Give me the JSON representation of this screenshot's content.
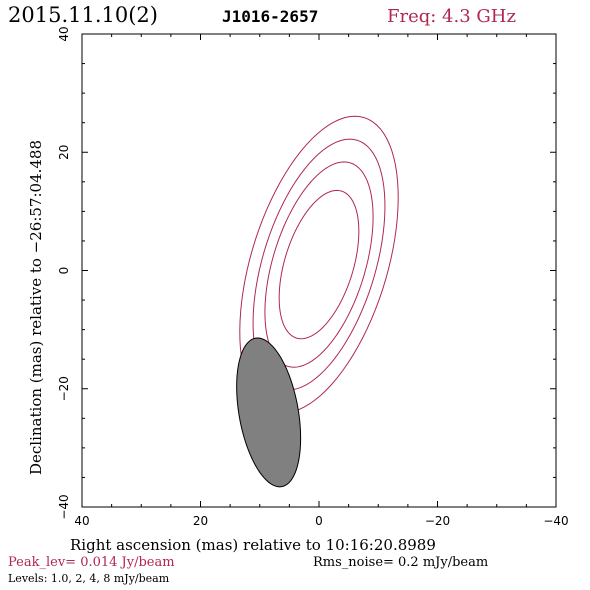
{
  "header": {
    "date": "2015.11.10(2)",
    "source": "J1016-2657",
    "freq": "Freq: 4.3 GHz"
  },
  "footer": {
    "peak": "Peak_lev=  0.014 Jy/beam",
    "rms": "Rms_noise=   0.2 mJy/beam",
    "levels": "Levels: 1.0,    2,    4,    8 mJy/beam"
  },
  "colors": {
    "contour": "#b0284f",
    "beam_fill": "#808080",
    "axes": "#000000"
  },
  "chart_data": {
    "type": "contour",
    "xlabel": "Right ascension (mas) relative to 10:16:20.8989",
    "ylabel": "Declination (mas) relative to −26:57:04.488",
    "xlim": [
      40,
      -40
    ],
    "ylim": [
      -40,
      40
    ],
    "x_ticks": [
      40,
      20,
      0,
      -20,
      -40
    ],
    "y_ticks": [
      -40,
      -20,
      0,
      20,
      40
    ],
    "x_tick_labels": [
      "40",
      "20",
      "0",
      "−20",
      "−40"
    ],
    "y_tick_labels": [
      "−40",
      "−20",
      "0",
      "20",
      "40"
    ],
    "units": "mas",
    "contour_levels_mJy": [
      1.0,
      2,
      4,
      8
    ],
    "contours": [
      {
        "level_mJy": 1.0,
        "center": [
          0,
          1
        ],
        "semi_major_mas": 26,
        "semi_minor_mas": 11.5,
        "pa_deg": -17
      },
      {
        "level_mJy": 2,
        "center": [
          0,
          1
        ],
        "semi_major_mas": 22,
        "semi_minor_mas": 9.5,
        "pa_deg": -17
      },
      {
        "level_mJy": 4,
        "center": [
          0,
          1
        ],
        "semi_major_mas": 18,
        "semi_minor_mas": 7.8,
        "pa_deg": -17
      },
      {
        "level_mJy": 8,
        "center": [
          0,
          1
        ],
        "semi_major_mas": 13,
        "semi_minor_mas": 5.8,
        "pa_deg": -17
      }
    ],
    "beam": {
      "center": [
        8.5,
        -24
      ],
      "major_mas": 25.5,
      "minor_mas": 10,
      "pa_deg": 10
    },
    "grid": false,
    "legend": "none"
  }
}
